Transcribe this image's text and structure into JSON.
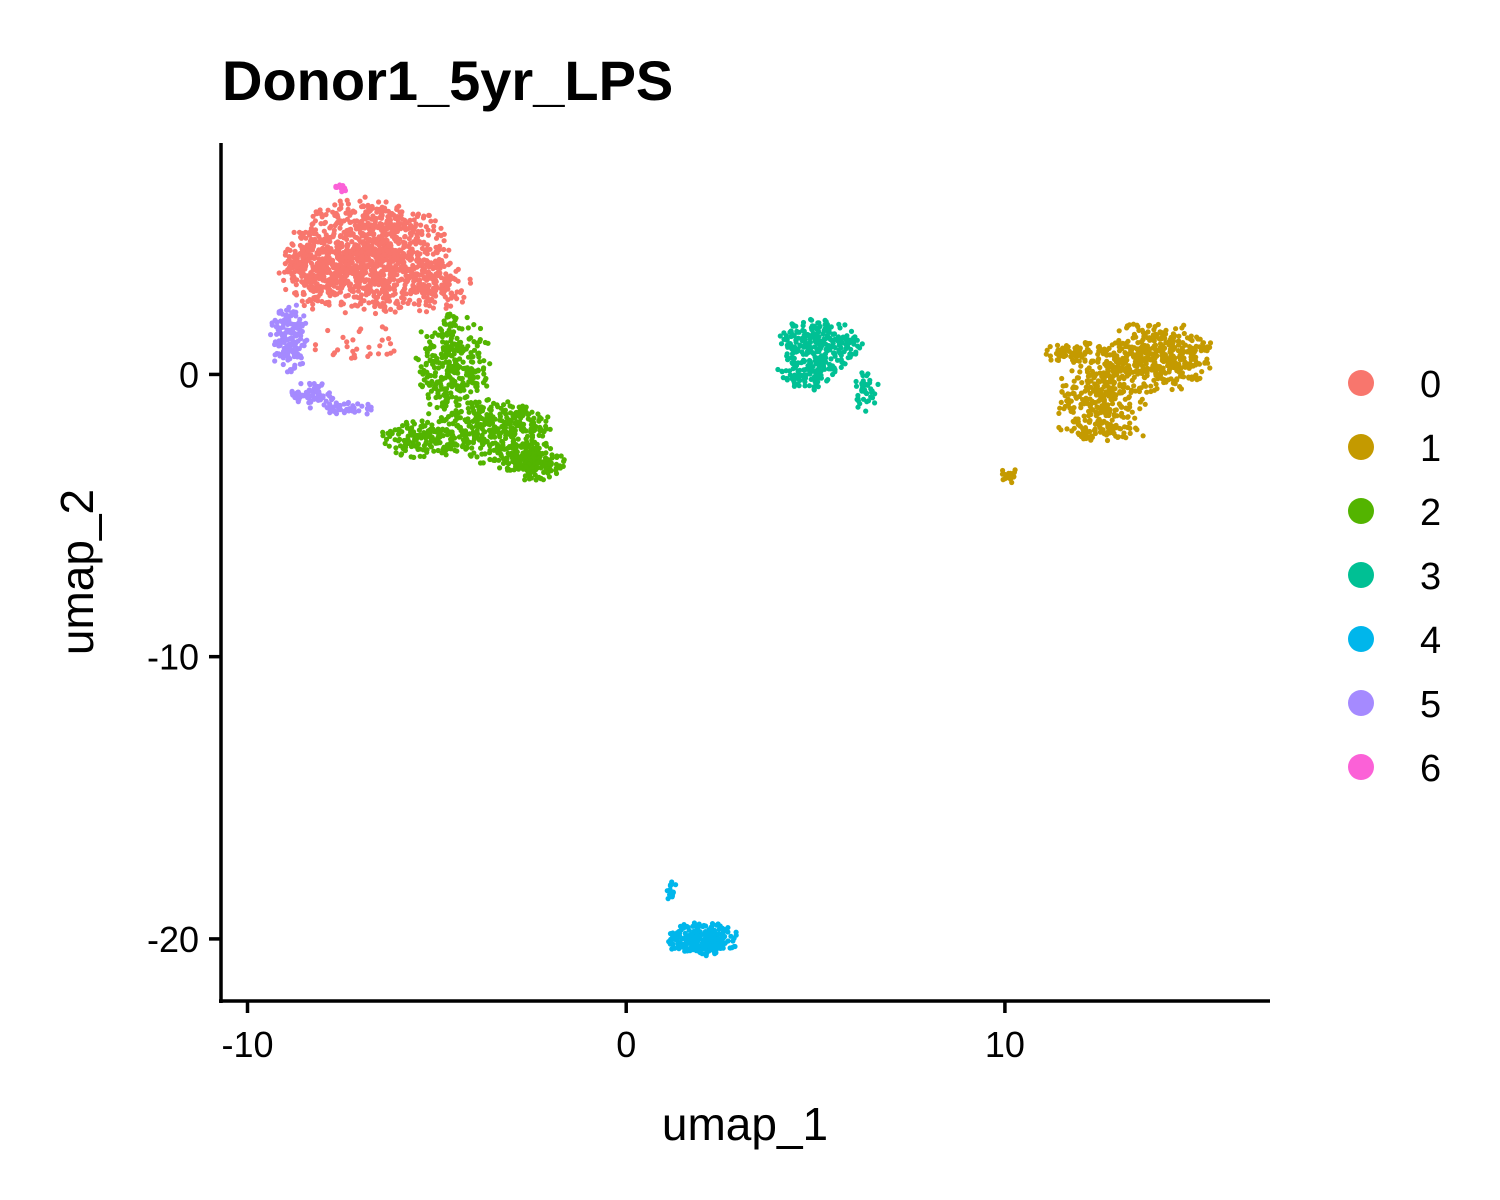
{
  "chart_data": {
    "type": "scatter",
    "title": "Donor1_5yr_LPS",
    "xlabel": "umap_1",
    "ylabel": "umap_2",
    "xlim": [
      -10.7,
      17
    ],
    "ylim": [
      -22.2,
      8.2
    ],
    "x_ticks": [
      -10,
      0,
      10
    ],
    "y_ticks": [
      0,
      -10,
      -20
    ],
    "grid": false,
    "legend_position": "right",
    "clusters": [
      {
        "name": "0",
        "color": "#F8766D",
        "regions": [
          {
            "cx": -6.8,
            "cy": 4.2,
            "rx": 2.2,
            "ry": 2.1,
            "n": 1100
          },
          {
            "cx": -8.3,
            "cy": 3.6,
            "rx": 0.9,
            "ry": 1.3,
            "n": 160
          },
          {
            "cx": -5.0,
            "cy": 3.2,
            "rx": 0.9,
            "ry": 1.1,
            "n": 140
          },
          {
            "cx": -7.0,
            "cy": 1.0,
            "rx": 1.3,
            "ry": 0.8,
            "n": 30
          }
        ]
      },
      {
        "name": "1",
        "color": "#C49A00",
        "regions": [
          {
            "cx": 14.0,
            "cy": 0.6,
            "rx": 1.6,
            "ry": 1.3,
            "n": 420
          },
          {
            "cx": 12.6,
            "cy": -0.8,
            "rx": 1.3,
            "ry": 1.6,
            "n": 280
          },
          {
            "cx": 11.8,
            "cy": 0.8,
            "rx": 1.0,
            "ry": 0.4,
            "n": 70
          },
          {
            "cx": 12.5,
            "cy": -2.0,
            "rx": 1.4,
            "ry": 0.35,
            "n": 60
          },
          {
            "cx": 10.1,
            "cy": -3.6,
            "rx": 0.45,
            "ry": 0.25,
            "n": 20
          }
        ]
      },
      {
        "name": "2",
        "color": "#53B400",
        "regions": [
          {
            "cx": -4.6,
            "cy": 0.2,
            "rx": 1.1,
            "ry": 2.0,
            "n": 320
          },
          {
            "cx": -3.4,
            "cy": -2.0,
            "rx": 1.5,
            "ry": 1.2,
            "n": 320
          },
          {
            "cx": -2.5,
            "cy": -3.1,
            "rx": 0.9,
            "ry": 0.7,
            "n": 200
          },
          {
            "cx": -5.3,
            "cy": -2.3,
            "rx": 1.3,
            "ry": 0.7,
            "n": 160
          }
        ]
      },
      {
        "name": "3",
        "color": "#00C094",
        "regions": [
          {
            "cx": 5.1,
            "cy": 1.0,
            "rx": 1.2,
            "ry": 1.0,
            "n": 260
          },
          {
            "cx": 4.8,
            "cy": 0.0,
            "rx": 0.9,
            "ry": 0.6,
            "n": 90
          },
          {
            "cx": 6.3,
            "cy": -0.6,
            "rx": 0.4,
            "ry": 0.7,
            "n": 40
          }
        ]
      },
      {
        "name": "4",
        "color": "#00B6EB",
        "regions": [
          {
            "cx": 2.0,
            "cy": -20.0,
            "rx": 1.0,
            "ry": 0.6,
            "n": 260
          },
          {
            "cx": 1.2,
            "cy": -18.3,
            "rx": 0.15,
            "ry": 0.5,
            "n": 14
          }
        ]
      },
      {
        "name": "5",
        "color": "#A58AFF",
        "regions": [
          {
            "cx": -8.9,
            "cy": 1.3,
            "rx": 0.5,
            "ry": 1.4,
            "n": 170
          },
          {
            "cx": -8.3,
            "cy": -0.7,
            "rx": 0.6,
            "ry": 0.5,
            "n": 70
          },
          {
            "cx": -7.4,
            "cy": -1.2,
            "rx": 0.8,
            "ry": 0.3,
            "n": 50
          }
        ]
      },
      {
        "name": "6",
        "color": "#FB61D7",
        "regions": [
          {
            "cx": -7.5,
            "cy": 6.6,
            "rx": 0.2,
            "ry": 0.15,
            "n": 14
          }
        ]
      }
    ]
  }
}
